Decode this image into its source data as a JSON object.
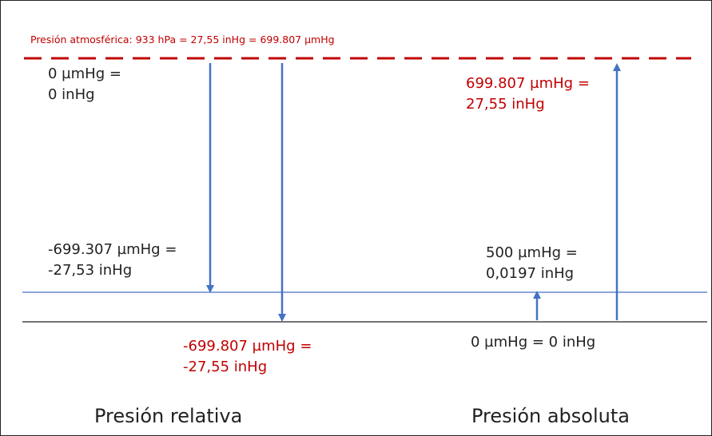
{
  "atmospheric_label": "Presión atmosférica: 933 hPa = 27,55 inHg = 699.807 µmHg",
  "labels": {
    "zero_relative": {
      "line1": "0 µmHg =",
      "line2": "0 inHg"
    },
    "minus_699307": {
      "line1": "-699.307 µmHg =",
      "line2": "-27,53 inHg"
    },
    "minus_699807": {
      "line1": "-699.807 µmHg =",
      "line2": "-27,55 inHg"
    },
    "plus_699807": {
      "line1": "699.807 µmHg =",
      "line2": "27,55 inHg"
    },
    "plus_500": {
      "line1": "500 µmHg =",
      "line2": "0,0197 inHg"
    },
    "zero_absolute": "0 µmHg = 0 inHg"
  },
  "bottom": {
    "relative_title": "Presión relativa",
    "absolute_title": "Presión absoluta"
  },
  "colors": {
    "atmospheric_line": "#c00000",
    "arrow": "#4472c4",
    "reference_line": "#4472c4",
    "zero_line": "#222222",
    "highlight_text": "#c00000"
  }
}
